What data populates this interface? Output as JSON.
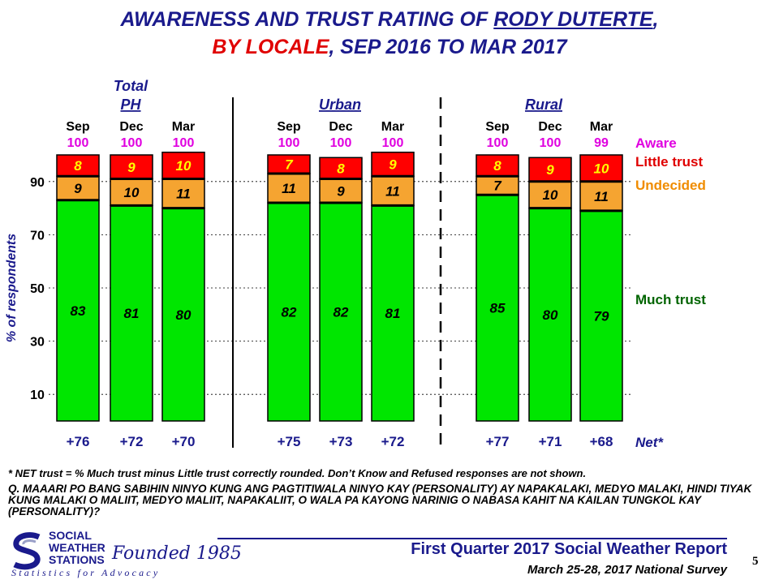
{
  "title": {
    "line1_prefix": "AWARENESS AND TRUST RATING OF ",
    "line1_name": "RODY DUTERTE",
    "line1_suffix": ",",
    "line2_locale": "BY LOCALE",
    "line2_rest": ", SEP 2016 TO MAR 2017"
  },
  "colors": {
    "much_trust": "#00e600",
    "undecided": "#f5a431",
    "little_trust": "#ff0000",
    "aware": "#e000e0",
    "navy": "#1a1a8c",
    "label_green": "#006400",
    "label_red": "#e00000",
    "label_orange": "#f08c00"
  },
  "chart_data": {
    "type": "bar",
    "stacked": true,
    "ylabel": "% of respondents",
    "yticks": [
      10,
      30,
      50,
      70,
      90
    ],
    "ylim": [
      0,
      100
    ],
    "groups": [
      {
        "name": "Total PH",
        "name_line1": "Total",
        "name_line2": "PH"
      },
      {
        "name": "Urban",
        "name_line1": "",
        "name_line2": "Urban"
      },
      {
        "name": "Rural",
        "name_line1": "",
        "name_line2": "Rural"
      }
    ],
    "series_labels": {
      "aware": "Aware",
      "little": "Little trust",
      "undecided": "Undecided",
      "much": "Much trust",
      "net": "Net*"
    },
    "bars": [
      {
        "group": "Total PH",
        "month": "Sep",
        "aware": 100,
        "much": 83,
        "undecided": 9,
        "little": 8,
        "net": "+76"
      },
      {
        "group": "Total PH",
        "month": "Dec",
        "aware": 100,
        "much": 81,
        "undecided": 10,
        "little": 9,
        "net": "+72"
      },
      {
        "group": "Total PH",
        "month": "Mar",
        "aware": 100,
        "much": 80,
        "undecided": 11,
        "little": 10,
        "net": "+70"
      },
      {
        "group": "Urban",
        "month": "Sep",
        "aware": 100,
        "much": 82,
        "undecided": 11,
        "little": 7,
        "net": "+75"
      },
      {
        "group": "Urban",
        "month": "Dec",
        "aware": 100,
        "much": 82,
        "undecided": 9,
        "little": 8,
        "net": "+73"
      },
      {
        "group": "Urban",
        "month": "Mar",
        "aware": 100,
        "much": 81,
        "undecided": 11,
        "little": 9,
        "net": "+72"
      },
      {
        "group": "Rural",
        "month": "Sep",
        "aware": 100,
        "much": 85,
        "undecided": 7,
        "little": 8,
        "net": "+77"
      },
      {
        "group": "Rural",
        "month": "Dec",
        "aware": 100,
        "much": 80,
        "undecided": 10,
        "little": 9,
        "net": "+71"
      },
      {
        "group": "Rural",
        "month": "Mar",
        "aware": 99,
        "much": 79,
        "undecided": 11,
        "little": 10,
        "net": "+68"
      }
    ]
  },
  "footnote": "* NET trust = % Much trust minus Little trust correctly  rounded. Don’t Know and Refused responses are not shown.",
  "question": "Q. MAAARI PO BANG SABIHIN NINYO KUNG ANG PAGTITIWALA NINYO KAY (PERSONALITY) AY NAPAKALAKI, MEDYO MALAKI, HINDI TIYAK KUNG MALAKI O MALIIT, MEDYO MALIIT, NAPAKALIIT, O WALA PA KAYONG NARINIG O NABASA KAHIT NA KAILAN TUNGKOL KAY (PERSONALITY)?",
  "logo": {
    "line1": "SOCIAL",
    "line2": "WEATHER",
    "line3": "STATIONS",
    "founded": "Founded 1985",
    "tagline": "Statistics for Advocacy",
    "icon": "sws-swirl-icon"
  },
  "report_title": "First Quarter 2017 Social Weather Report",
  "survey_dates": "March 25-28, 2017 National Survey",
  "page_number": "5"
}
